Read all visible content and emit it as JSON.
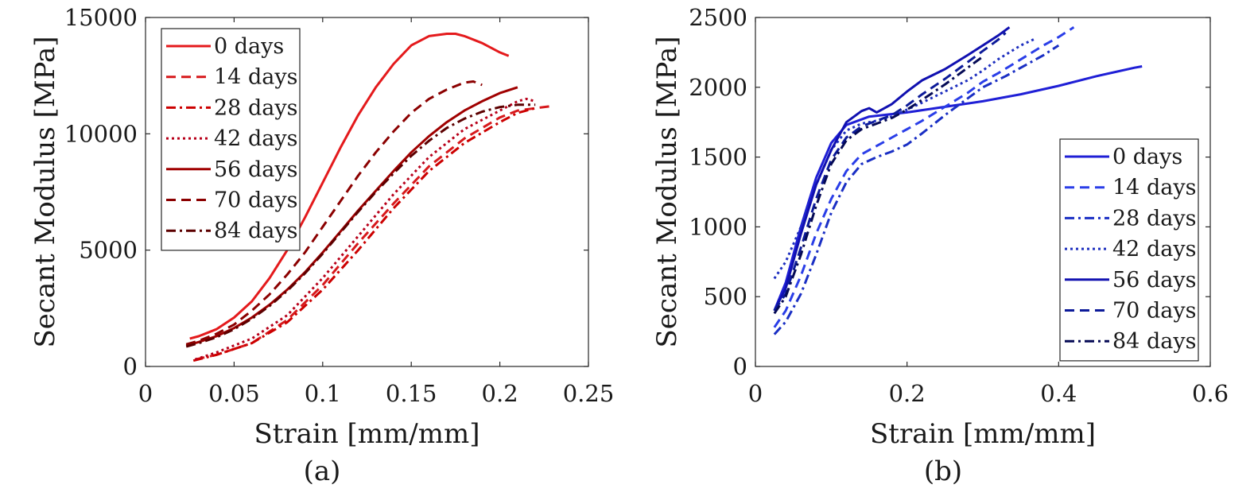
{
  "chart_data": [
    {
      "type": "line",
      "panel_label": "(a)",
      "xlabel": "Strain [mm/mm]",
      "ylabel": "Secant Modulus [MPa]",
      "xlim": [
        0,
        0.25
      ],
      "ylim": [
        0,
        15000
      ],
      "xticks": [
        0,
        0.05,
        0.1,
        0.15,
        0.2,
        0.25
      ],
      "xtick_labels": [
        "0",
        "0.05",
        "0.1",
        "0.15",
        "0.2",
        "0.25"
      ],
      "yticks": [
        0,
        5000,
        10000,
        15000
      ],
      "ytick_labels": [
        "0",
        "5000",
        "10000",
        "15000"
      ],
      "legend_position": "top-left",
      "series": [
        {
          "name": "0 days",
          "color": "#e41a1c",
          "dash": "solid",
          "x": [
            0.025,
            0.03,
            0.04,
            0.05,
            0.06,
            0.07,
            0.08,
            0.09,
            0.1,
            0.11,
            0.12,
            0.13,
            0.14,
            0.15,
            0.16,
            0.17,
            0.175,
            0.18,
            0.19,
            0.2,
            0.205
          ],
          "y": [
            1200,
            1300,
            1600,
            2100,
            2800,
            3800,
            5000,
            6400,
            7900,
            9400,
            10800,
            12000,
            13000,
            13800,
            14200,
            14300,
            14300,
            14200,
            13900,
            13500,
            13350
          ]
        },
        {
          "name": "14 days",
          "color": "#d7191c",
          "dash": "dash",
          "x": [
            0.028,
            0.04,
            0.06,
            0.08,
            0.1,
            0.12,
            0.14,
            0.16,
            0.18,
            0.2,
            0.21,
            0.22,
            0.23
          ],
          "y": [
            300,
            500,
            1000,
            2000,
            3500,
            5300,
            7000,
            8600,
            9800,
            10700,
            11000,
            11100,
            11200
          ]
        },
        {
          "name": "28 days",
          "color": "#cc0000",
          "dash": "dashdot",
          "x": [
            0.027,
            0.04,
            0.06,
            0.08,
            0.1,
            0.12,
            0.14,
            0.16,
            0.18,
            0.2,
            0.21,
            0.22
          ],
          "y": [
            250,
            500,
            1000,
            1900,
            3300,
            5000,
            6800,
            8400,
            9600,
            10500,
            10900,
            11100
          ]
        },
        {
          "name": "42 days",
          "color": "#b8001a",
          "dash": "dot",
          "x": [
            0.028,
            0.04,
            0.06,
            0.08,
            0.1,
            0.12,
            0.14,
            0.16,
            0.18,
            0.2,
            0.21,
            0.215,
            0.22
          ],
          "y": [
            300,
            600,
            1200,
            2200,
            3800,
            5600,
            7400,
            9000,
            10200,
            11000,
            11400,
            11500,
            11400
          ]
        },
        {
          "name": "56 days",
          "color": "#a00000",
          "dash": "solid",
          "x": [
            0.023,
            0.03,
            0.04,
            0.05,
            0.06,
            0.07,
            0.08,
            0.09,
            0.1,
            0.11,
            0.12,
            0.13,
            0.14,
            0.15,
            0.16,
            0.17,
            0.18,
            0.19,
            0.2,
            0.21
          ],
          "y": [
            900,
            1050,
            1300,
            1650,
            2100,
            2650,
            3300,
            4050,
            4900,
            5800,
            6700,
            7550,
            8400,
            9200,
            9900,
            10500,
            11000,
            11400,
            11750,
            12000
          ]
        },
        {
          "name": "70 days",
          "color": "#8b0000",
          "dash": "dash",
          "x": [
            0.023,
            0.03,
            0.04,
            0.05,
            0.06,
            0.07,
            0.08,
            0.09,
            0.1,
            0.11,
            0.12,
            0.13,
            0.14,
            0.15,
            0.16,
            0.17,
            0.18,
            0.185,
            0.19
          ],
          "y": [
            950,
            1100,
            1400,
            1800,
            2400,
            3100,
            3950,
            4900,
            6000,
            7100,
            8200,
            9200,
            10100,
            10900,
            11500,
            11900,
            12200,
            12250,
            12100
          ]
        },
        {
          "name": "84 days",
          "color": "#5c0000",
          "dash": "dashdot",
          "x": [
            0.023,
            0.03,
            0.04,
            0.05,
            0.06,
            0.07,
            0.08,
            0.09,
            0.1,
            0.11,
            0.12,
            0.13,
            0.14,
            0.15,
            0.16,
            0.17,
            0.18,
            0.19,
            0.2,
            0.21,
            0.22
          ],
          "y": [
            850,
            1000,
            1250,
            1600,
            2050,
            2600,
            3250,
            4000,
            4850,
            5750,
            6650,
            7500,
            8300,
            9050,
            9700,
            10250,
            10650,
            10950,
            11150,
            11250,
            11250
          ]
        }
      ]
    },
    {
      "type": "line",
      "panel_label": "(b)",
      "xlabel": "Strain [mm/mm]",
      "ylabel": "Secant Modulus [MPa]",
      "xlim": [
        0,
        0.6
      ],
      "ylim": [
        0,
        2500
      ],
      "xticks": [
        0,
        0.2,
        0.4,
        0.6
      ],
      "xtick_labels": [
        "0",
        "0.2",
        "0.4",
        "0.6"
      ],
      "yticks": [
        0,
        500,
        1000,
        1500,
        2000,
        2500
      ],
      "ytick_labels": [
        "0",
        "500",
        "1000",
        "1500",
        "2000",
        "2500"
      ],
      "legend_position": "bottom-right",
      "series": [
        {
          "name": "0 days",
          "color": "#1f1fd6",
          "dash": "solid",
          "x": [
            0.025,
            0.04,
            0.06,
            0.08,
            0.1,
            0.12,
            0.15,
            0.2,
            0.25,
            0.3,
            0.35,
            0.4,
            0.45,
            0.5,
            0.51
          ],
          "y": [
            400,
            600,
            1000,
            1350,
            1600,
            1730,
            1790,
            1820,
            1860,
            1900,
            1950,
            2010,
            2080,
            2140,
            2150
          ]
        },
        {
          "name": "14 days",
          "color": "#2a3ee8",
          "dash": "dash",
          "x": [
            0.025,
            0.04,
            0.06,
            0.08,
            0.1,
            0.12,
            0.14,
            0.16,
            0.18,
            0.2,
            0.22,
            0.25,
            0.28,
            0.3,
            0.32,
            0.35,
            0.38,
            0.4,
            0.42
          ],
          "y": [
            280,
            400,
            650,
            950,
            1200,
            1400,
            1520,
            1580,
            1640,
            1700,
            1760,
            1860,
            1960,
            2040,
            2100,
            2200,
            2300,
            2360,
            2430
          ]
        },
        {
          "name": "28 days",
          "color": "#1a2fc4",
          "dash": "dashdot",
          "x": [
            0.025,
            0.04,
            0.06,
            0.08,
            0.1,
            0.12,
            0.14,
            0.16,
            0.18,
            0.2,
            0.22,
            0.25,
            0.28,
            0.3,
            0.33,
            0.35,
            0.38,
            0.4
          ],
          "y": [
            230,
            320,
            520,
            800,
            1100,
            1320,
            1450,
            1500,
            1540,
            1590,
            1670,
            1800,
            1920,
            2000,
            2080,
            2140,
            2230,
            2300
          ]
        },
        {
          "name": "42 days",
          "color": "#1e2fbf",
          "dash": "dot",
          "x": [
            0.025,
            0.04,
            0.06,
            0.08,
            0.1,
            0.12,
            0.14,
            0.16,
            0.18,
            0.2,
            0.22,
            0.25,
            0.28,
            0.3,
            0.32,
            0.35,
            0.37
          ],
          "y": [
            630,
            750,
            1000,
            1300,
            1550,
            1690,
            1740,
            1760,
            1790,
            1840,
            1890,
            1970,
            2050,
            2120,
            2200,
            2300,
            2350
          ]
        },
        {
          "name": "56 days",
          "color": "#1010b0",
          "dash": "solid",
          "x": [
            0.025,
            0.04,
            0.06,
            0.08,
            0.1,
            0.12,
            0.14,
            0.15,
            0.16,
            0.18,
            0.2,
            0.22,
            0.25,
            0.28,
            0.3,
            0.32,
            0.335
          ],
          "y": [
            400,
            560,
            950,
            1300,
            1550,
            1750,
            1830,
            1850,
            1820,
            1880,
            1970,
            2050,
            2130,
            2230,
            2300,
            2370,
            2430
          ]
        },
        {
          "name": "70 days",
          "color": "#0c1a99",
          "dash": "dash",
          "x": [
            0.025,
            0.04,
            0.06,
            0.08,
            0.1,
            0.12,
            0.14,
            0.16,
            0.18,
            0.2,
            0.22,
            0.25,
            0.28,
            0.3,
            0.32,
            0.33
          ],
          "y": [
            400,
            520,
            850,
            1200,
            1480,
            1640,
            1720,
            1760,
            1800,
            1870,
            1950,
            2060,
            2180,
            2260,
            2340,
            2390
          ]
        },
        {
          "name": "84 days",
          "color": "#050a55",
          "dash": "dashdot",
          "x": [
            0.025,
            0.04,
            0.06,
            0.08,
            0.1,
            0.12,
            0.14,
            0.16,
            0.18,
            0.2,
            0.22,
            0.25,
            0.28,
            0.3
          ],
          "y": [
            380,
            500,
            800,
            1150,
            1450,
            1620,
            1700,
            1740,
            1780,
            1840,
            1910,
            2020,
            2140,
            2220
          ]
        }
      ]
    }
  ]
}
